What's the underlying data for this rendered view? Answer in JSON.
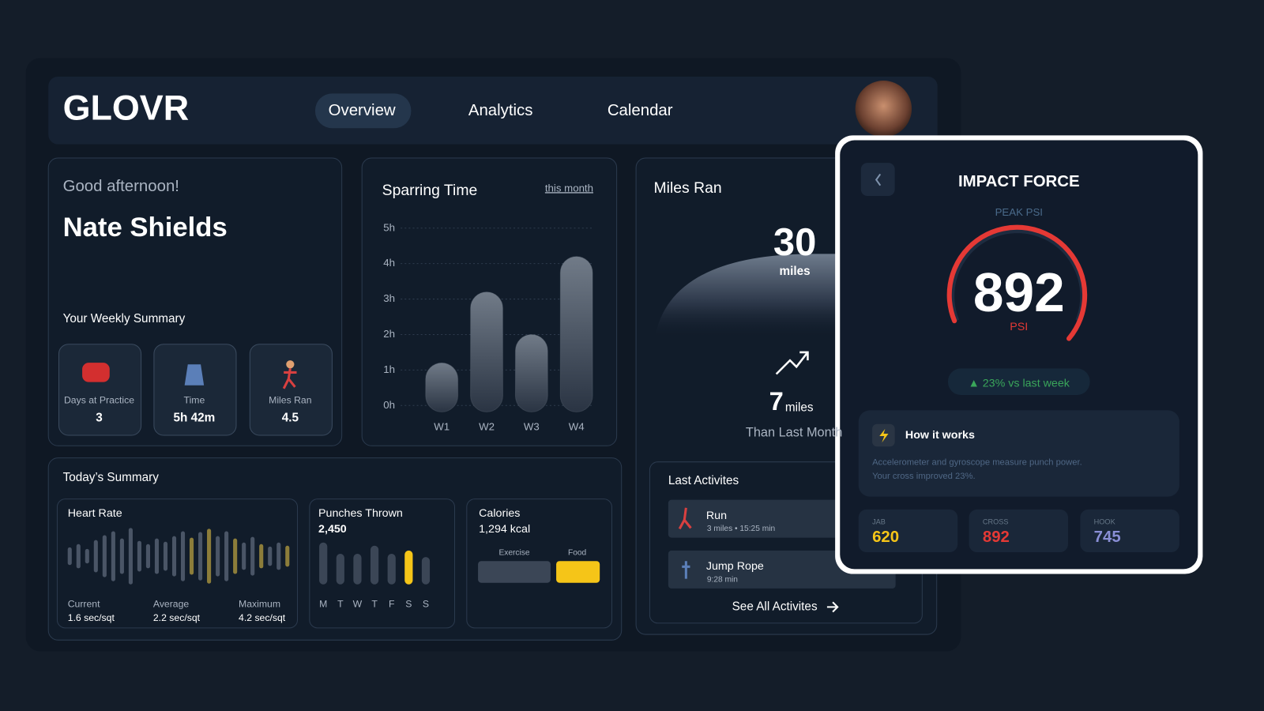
{
  "header": {
    "logo": "GLOVR",
    "nav": [
      "Overview",
      "Analytics",
      "Calendar"
    ]
  },
  "greeting": {
    "salutation": "Good afternoon!",
    "name": "Nate Shields"
  },
  "weekly_summary": {
    "title": "Your Weekly Summary",
    "items": [
      {
        "label": "Days at Practice",
        "value": "3"
      },
      {
        "label": "Time",
        "value": "5h 42m"
      },
      {
        "label": "Miles Ran",
        "value": "4.5"
      }
    ]
  },
  "sparring": {
    "title": "Sparring Time",
    "period": "this month",
    "chart_data": {
      "type": "bar",
      "categories": [
        "W1",
        "W2",
        "W3",
        "W4"
      ],
      "values": [
        1.2,
        3.2,
        2.0,
        4.2
      ],
      "ylim": [
        0,
        5
      ],
      "yticks": [
        {
          "value": 0,
          "label": "0h"
        },
        {
          "value": 1,
          "label": "1h"
        },
        {
          "value": 2,
          "label": "2h"
        },
        {
          "value": 3,
          "label": "3h"
        },
        {
          "value": 4,
          "label": "4h"
        },
        {
          "value": 5,
          "label": "5h"
        }
      ],
      "grid": true,
      "color": "#6b7482"
    }
  },
  "miles": {
    "title": "Miles Ran",
    "total": "30",
    "total_unit": "miles",
    "delta": "7",
    "delta_unit": "miles",
    "delta_caption": "Than Last Month"
  },
  "today": {
    "title": "Today’s Summary",
    "heart_rate": {
      "title": "Heart Rate",
      "values": [
        22,
        30,
        18,
        40,
        52,
        62,
        44,
        70,
        38,
        30,
        44,
        36,
        50,
        62,
        46,
        60,
        68,
        50,
        62,
        44,
        34,
        48,
        30,
        24,
        34,
        26
      ],
      "highlight": [
        14,
        16,
        19,
        22,
        25
      ],
      "color": "#4a5566",
      "highlight_color": "#8c7d3a",
      "stats": [
        {
          "label": "Current",
          "value": "1.6 sec/sqt"
        },
        {
          "label": "Average",
          "value": "2.2 sec/sqt"
        },
        {
          "label": "Maximum",
          "value": "4.2 sec/sqt"
        }
      ]
    },
    "punches": {
      "title": "Punches Thrown",
      "total": "2,450",
      "chart_data": {
        "type": "bar",
        "categories": [
          "M",
          "T",
          "W",
          "T",
          "F",
          "S",
          "S"
        ],
        "values": [
          52,
          38,
          38,
          48,
          38,
          42,
          34
        ],
        "highlight": 5,
        "color": "#3b4656",
        "highlight_color": "#f5c518"
      }
    },
    "calories": {
      "title": "Calories",
      "total": "1,294 kcal",
      "labels": [
        "Exercise",
        "Food"
      ]
    }
  },
  "activities": {
    "title": "Last Activites",
    "items": [
      {
        "name": "Run",
        "detail": "3 miles • 15:25 min"
      },
      {
        "name": "Jump Rope",
        "detail": "9:28 min"
      }
    ],
    "link": "See All Activites"
  },
  "impact": {
    "title": "IMPACT FORCE",
    "subtitle": "PEAK PSI",
    "value": "892",
    "unit": "PSI",
    "change": "▲ 23% vs last week",
    "how": {
      "title": "How it works",
      "text": [
        "Accelerometer and gyroscope measure punch power.",
        "Your cross improved 23%."
      ]
    },
    "punches": [
      {
        "label": "JAB",
        "value": "620",
        "color": "#f5c518"
      },
      {
        "label": "CROSS",
        "value": "892",
        "color": "#e53935"
      },
      {
        "label": "HOOK",
        "value": "745",
        "color": "#8a8fd6"
      }
    ]
  }
}
